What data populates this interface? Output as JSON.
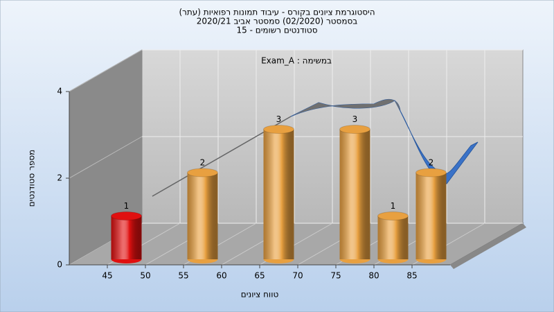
{
  "chart_data": {
    "type": "histogram",
    "title": "היסטוגרמת ציונים בקורס - עיבוד תמונות רפואיות (עתר)",
    "subtitle": "בסמסטר  (02/2020)  סמסטר אביב 2020/21",
    "subtitle2": "סטודנטים רשומים - 15",
    "annotation": "Exam_A : במשימה",
    "xlabel": "טווח ציונים",
    "ylabel": "מספר סטודנטים",
    "bins": [
      45,
      50,
      55,
      60,
      65,
      70,
      75,
      80,
      85,
      90
    ],
    "values": [
      1,
      0,
      2,
      0,
      3,
      0,
      3,
      1,
      2
    ],
    "colors": [
      "#e01010",
      "#e8a040",
      "#e8a040",
      "#e8a040",
      "#e8a040",
      "#e8a040",
      "#e8a040",
      "#e8a040",
      "#e8a040"
    ],
    "xlim": [
      40,
      90
    ],
    "xticks": [
      45,
      50,
      55,
      60,
      65,
      70,
      75,
      80,
      85
    ],
    "ylim": [
      0,
      4
    ],
    "yticks": [
      0,
      2,
      4
    ],
    "grid": true
  }
}
